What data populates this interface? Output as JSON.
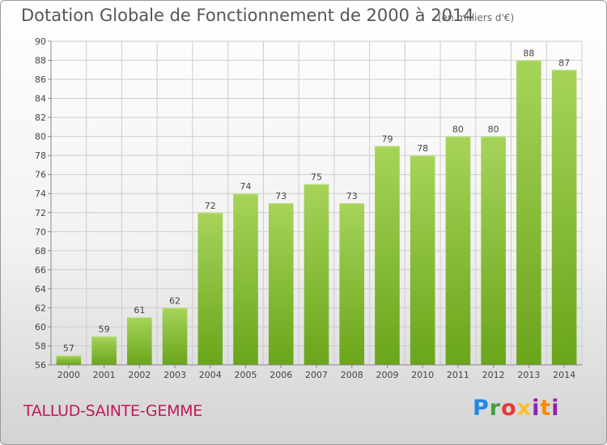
{
  "chart_data": {
    "type": "bar",
    "title": "Dotation Globale de Fonctionnement de 2000 à 2014",
    "subtitle": "(en milliers d'€)",
    "categories": [
      "2000",
      "2001",
      "2002",
      "2003",
      "2004",
      "2005",
      "2006",
      "2007",
      "2008",
      "2009",
      "2010",
      "2011",
      "2012",
      "2013",
      "2014"
    ],
    "values": [
      57,
      59,
      61,
      62,
      72,
      74,
      73,
      75,
      73,
      79,
      78,
      80,
      80,
      88,
      87
    ],
    "ylim": [
      56,
      90
    ],
    "yticks": [
      56,
      58,
      60,
      62,
      64,
      66,
      68,
      70,
      72,
      74,
      76,
      78,
      80,
      82,
      84,
      86,
      88,
      90
    ],
    "xlabel": "",
    "ylabel": "",
    "grid": true,
    "colors": {
      "bar_light": "#a6d45a",
      "bar_dark": "#6aa51a",
      "grid": "#cccccc",
      "axis": "#888888"
    }
  },
  "footer": {
    "place": "TALLUD-SAINTE-GEMME",
    "logo": "Proxiti"
  }
}
